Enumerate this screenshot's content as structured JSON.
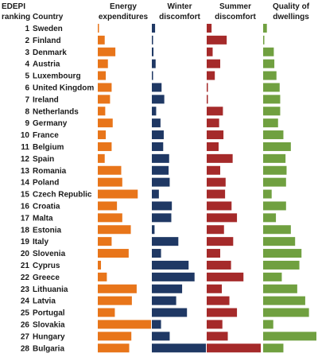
{
  "chart_data": {
    "type": "bar",
    "headers": {
      "ranking_line1": "EDEPI",
      "ranking_line2": "ranking",
      "country": "Country",
      "energy_line1": "Energy",
      "energy_line2": "expenditures",
      "winter_line1": "Winter",
      "winter_line2": "discomfort",
      "summer_line1": "Summer",
      "summer_line2": "discomfort",
      "quality_line1": "Quality of",
      "quality_line2": "dwellings"
    },
    "rankings": [
      "1",
      "2",
      "3",
      "4",
      "5",
      "6",
      "7",
      "8",
      "9",
      "10",
      "11",
      "12",
      "13",
      "14",
      "15",
      "16",
      "17",
      "18",
      "19",
      "20",
      "21",
      "22",
      "23",
      "24",
      "25",
      "26",
      "27",
      "28"
    ],
    "categories": [
      "Sweden",
      "Finland",
      "Denmark",
      "Austria",
      "Luxembourg",
      "United Kingdom",
      "Ireland",
      "Netherlands",
      "Germany",
      "France",
      "Belgium",
      "Spain",
      "Romania",
      "Poland",
      "Czech Republic",
      "Croatia",
      "Malta",
      "Estonia",
      "Italy",
      "Slovenia",
      "Cyprus",
      "Greece",
      "Lithuania",
      "Latvia",
      "Portugal",
      "Slovakia",
      "Hungary",
      "Bulgaria"
    ],
    "series": [
      {
        "name": "Energy expenditures",
        "color": "#e8751a",
        "values": [
          0.0,
          0.13,
          0.33,
          0.19,
          0.15,
          0.26,
          0.23,
          0.14,
          0.28,
          0.15,
          0.26,
          0.13,
          0.44,
          0.46,
          0.75,
          0.36,
          0.46,
          0.62,
          0.26,
          0.58,
          0.06,
          0.17,
          0.73,
          0.64,
          0.32,
          1.0,
          0.63,
          0.59
        ]
      },
      {
        "name": "Winter discomfort",
        "color": "#1f3864",
        "values": [
          0.06,
          0.02,
          0.03,
          0.07,
          0.0,
          0.18,
          0.23,
          0.08,
          0.16,
          0.22,
          0.21,
          0.32,
          0.31,
          0.33,
          0.13,
          0.37,
          0.36,
          0.05,
          0.49,
          0.17,
          0.68,
          0.79,
          0.56,
          0.45,
          0.65,
          0.17,
          0.33,
          1.0
        ]
      },
      {
        "name": "Summer discomfort",
        "color": "#a52a2a",
        "values": [
          0.09,
          0.37,
          0.11,
          0.25,
          0.15,
          0.0,
          0.0,
          0.3,
          0.23,
          0.31,
          0.22,
          0.48,
          0.25,
          0.35,
          0.34,
          0.46,
          0.56,
          0.32,
          0.49,
          0.25,
          0.45,
          0.68,
          0.28,
          0.42,
          0.56,
          0.29,
          0.39,
          1.0
        ]
      },
      {
        "name": "Quality of dwellings",
        "color": "#70a040",
        "values": [
          0.07,
          0.0,
          0.2,
          0.21,
          0.25,
          0.31,
          0.32,
          0.32,
          0.28,
          0.38,
          0.52,
          0.42,
          0.44,
          0.43,
          0.16,
          0.43,
          0.24,
          0.52,
          0.6,
          0.72,
          0.68,
          0.35,
          0.64,
          0.79,
          0.86,
          0.19,
          1.0,
          0.38
        ]
      }
    ],
    "ylim": [
      0,
      1
    ],
    "legend": "none",
    "grid": false
  }
}
